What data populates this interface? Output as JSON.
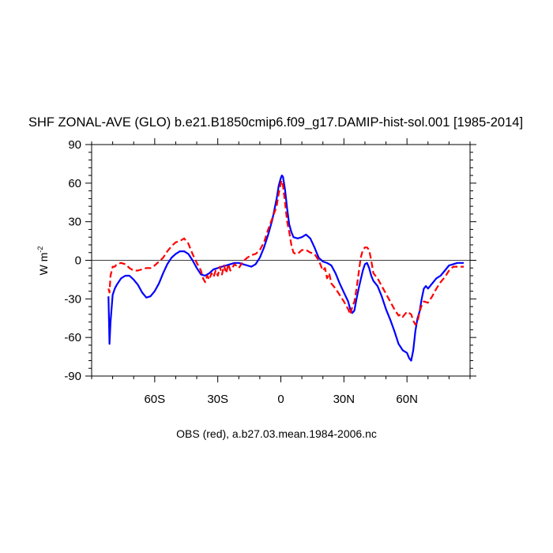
{
  "chart_data": {
    "type": "line",
    "title": "SHF ZONAL-AVE (GLO) b.e21.B1850cmip6.f09_g17.DAMIP-hist-sol.001 [1985-2014]",
    "subtitle": "OBS (red), a.b27.03.mean.1984-2006.nc",
    "xlabel": "",
    "ylabel": "W m",
    "ylabel_superscript": "-2",
    "xlim": [
      -90,
      90
    ],
    "ylim": [
      -90,
      90
    ],
    "reference_line_y": 0,
    "x_ticks": [
      {
        "value": -60,
        "label": "60S"
      },
      {
        "value": -30,
        "label": "30S"
      },
      {
        "value": 0,
        "label": "0"
      },
      {
        "value": 30,
        "label": "30N"
      },
      {
        "value": 60,
        "label": "60N"
      }
    ],
    "y_ticks": [
      {
        "value": 90,
        "label": "90"
      },
      {
        "value": 60,
        "label": "60"
      },
      {
        "value": 30,
        "label": "30"
      },
      {
        "value": 0,
        "label": "0"
      },
      {
        "value": -30,
        "label": "-30"
      },
      {
        "value": -60,
        "label": "-60"
      },
      {
        "value": -90,
        "label": "-90"
      }
    ],
    "series": [
      {
        "color": "#0000ff",
        "dash": "solid",
        "points": [
          [
            -82,
            -28
          ],
          [
            -81.5,
            -65
          ],
          [
            -81,
            -48
          ],
          [
            -80,
            -27
          ],
          [
            -79,
            -22
          ],
          [
            -78,
            -19
          ],
          [
            -76,
            -14
          ],
          [
            -74,
            -12
          ],
          [
            -72,
            -12
          ],
          [
            -70,
            -15
          ],
          [
            -68,
            -19
          ],
          [
            -66,
            -25
          ],
          [
            -64,
            -29
          ],
          [
            -62,
            -28
          ],
          [
            -60,
            -24
          ],
          [
            -58,
            -18
          ],
          [
            -56,
            -10
          ],
          [
            -54,
            -3
          ],
          [
            -52,
            2
          ],
          [
            -50,
            5
          ],
          [
            -48,
            7
          ],
          [
            -46,
            7
          ],
          [
            -44,
            5
          ],
          [
            -42,
            0
          ],
          [
            -40,
            -6
          ],
          [
            -38,
            -11
          ],
          [
            -36,
            -12
          ],
          [
            -34,
            -10
          ],
          [
            -32,
            -7
          ],
          [
            -30,
            -6
          ],
          [
            -28,
            -5
          ],
          [
            -26,
            -4
          ],
          [
            -24,
            -3
          ],
          [
            -22,
            -2
          ],
          [
            -20,
            -2
          ],
          [
            -18,
            -3
          ],
          [
            -16,
            -4
          ],
          [
            -14,
            -5
          ],
          [
            -12,
            -3
          ],
          [
            -10,
            2
          ],
          [
            -8,
            10
          ],
          [
            -6,
            20
          ],
          [
            -4,
            32
          ],
          [
            -2,
            48
          ],
          [
            -1,
            58
          ],
          [
            0,
            64
          ],
          [
            0.5,
            66
          ],
          [
            1,
            65
          ],
          [
            2,
            55
          ],
          [
            3,
            40
          ],
          [
            4,
            28
          ],
          [
            5,
            22
          ],
          [
            6,
            18
          ],
          [
            8,
            17
          ],
          [
            10,
            18
          ],
          [
            12,
            20
          ],
          [
            14,
            17
          ],
          [
            16,
            10
          ],
          [
            18,
            2
          ],
          [
            20,
            -1
          ],
          [
            22,
            -2
          ],
          [
            24,
            -4
          ],
          [
            26,
            -10
          ],
          [
            28,
            -18
          ],
          [
            30,
            -25
          ],
          [
            32,
            -32
          ],
          [
            33,
            -38
          ],
          [
            34,
            -41
          ],
          [
            35,
            -39
          ],
          [
            36,
            -30
          ],
          [
            37,
            -22
          ],
          [
            38,
            -15
          ],
          [
            39,
            -8
          ],
          [
            40,
            -3
          ],
          [
            41,
            -2
          ],
          [
            42,
            -6
          ],
          [
            43,
            -12
          ],
          [
            44,
            -16
          ],
          [
            46,
            -20
          ],
          [
            48,
            -28
          ],
          [
            50,
            -38
          ],
          [
            52,
            -46
          ],
          [
            54,
            -55
          ],
          [
            56,
            -65
          ],
          [
            58,
            -70
          ],
          [
            60,
            -72
          ],
          [
            61,
            -76
          ],
          [
            62,
            -78
          ],
          [
            63,
            -70
          ],
          [
            64,
            -55
          ],
          [
            65,
            -45
          ],
          [
            66,
            -40
          ],
          [
            67,
            -30
          ],
          [
            68,
            -22
          ],
          [
            69,
            -20
          ],
          [
            70,
            -22
          ],
          [
            72,
            -18
          ],
          [
            74,
            -14
          ],
          [
            76,
            -12
          ],
          [
            78,
            -8
          ],
          [
            80,
            -4
          ],
          [
            82,
            -3
          ],
          [
            84,
            -2
          ],
          [
            87,
            -2
          ]
        ]
      },
      {
        "color": "#ff0000",
        "dash": "dashed",
        "points": [
          [
            -82,
            -22
          ],
          [
            -81.5,
            -25
          ],
          [
            -81,
            -12
          ],
          [
            -80,
            -5
          ],
          [
            -79,
            -5
          ],
          [
            -78,
            -3
          ],
          [
            -76,
            -2
          ],
          [
            -74,
            -3
          ],
          [
            -72,
            -6
          ],
          [
            -70,
            -8
          ],
          [
            -68,
            -8
          ],
          [
            -66,
            -7
          ],
          [
            -64,
            -6
          ],
          [
            -62,
            -6
          ],
          [
            -60,
            -4
          ],
          [
            -58,
            -1
          ],
          [
            -56,
            2
          ],
          [
            -54,
            7
          ],
          [
            -52,
            11
          ],
          [
            -50,
            14
          ],
          [
            -48,
            15
          ],
          [
            -46,
            17
          ],
          [
            -44,
            13
          ],
          [
            -42,
            5
          ],
          [
            -40,
            -2
          ],
          [
            -38,
            -8
          ],
          [
            -37,
            -14
          ],
          [
            -36,
            -17
          ],
          [
            -35,
            -12
          ],
          [
            -34,
            -15
          ],
          [
            -33,
            -10
          ],
          [
            -32,
            -13
          ],
          [
            -31,
            -8
          ],
          [
            -30,
            -12
          ],
          [
            -29,
            -5
          ],
          [
            -28,
            -11
          ],
          [
            -27,
            -4
          ],
          [
            -26,
            -10
          ],
          [
            -25,
            -3
          ],
          [
            -24,
            -8
          ],
          [
            -22,
            -3
          ],
          [
            -20,
            -6
          ],
          [
            -18,
            -1
          ],
          [
            -16,
            2
          ],
          [
            -14,
            4
          ],
          [
            -12,
            5
          ],
          [
            -10,
            8
          ],
          [
            -8,
            14
          ],
          [
            -6,
            24
          ],
          [
            -4,
            33
          ],
          [
            -2,
            42
          ],
          [
            -1,
            52
          ],
          [
            0,
            60
          ],
          [
            0.5,
            62
          ],
          [
            1,
            58
          ],
          [
            2,
            45
          ],
          [
            3,
            30
          ],
          [
            4,
            22
          ],
          [
            5,
            12
          ],
          [
            6,
            6
          ],
          [
            7,
            5
          ],
          [
            8,
            5
          ],
          [
            10,
            8
          ],
          [
            12,
            8
          ],
          [
            14,
            6
          ],
          [
            16,
            5
          ],
          [
            18,
            0
          ],
          [
            20,
            -8
          ],
          [
            21,
            -6
          ],
          [
            22,
            -14
          ],
          [
            23,
            -10
          ],
          [
            24,
            -18
          ],
          [
            26,
            -22
          ],
          [
            28,
            -27
          ],
          [
            30,
            -32
          ],
          [
            32,
            -38
          ],
          [
            33,
            -42
          ],
          [
            34,
            -36
          ],
          [
            35,
            -32
          ],
          [
            36,
            -22
          ],
          [
            37,
            -10
          ],
          [
            38,
            2
          ],
          [
            39,
            8
          ],
          [
            40,
            10
          ],
          [
            41,
            10
          ],
          [
            42,
            8
          ],
          [
            43,
            0
          ],
          [
            44,
            -10
          ],
          [
            46,
            -14
          ],
          [
            48,
            -20
          ],
          [
            50,
            -26
          ],
          [
            52,
            -32
          ],
          [
            54,
            -38
          ],
          [
            56,
            -43
          ],
          [
            57,
            -42
          ],
          [
            58,
            -44
          ],
          [
            60,
            -40
          ],
          [
            62,
            -42
          ],
          [
            63,
            -47
          ],
          [
            64,
            -50
          ],
          [
            65,
            -48
          ],
          [
            66,
            -40
          ],
          [
            67,
            -35
          ],
          [
            68,
            -32
          ],
          [
            70,
            -33
          ],
          [
            72,
            -28
          ],
          [
            74,
            -22
          ],
          [
            76,
            -17
          ],
          [
            78,
            -13
          ],
          [
            80,
            -8
          ],
          [
            82,
            -5
          ],
          [
            84,
            -5
          ],
          [
            87,
            -5
          ]
        ]
      }
    ]
  }
}
